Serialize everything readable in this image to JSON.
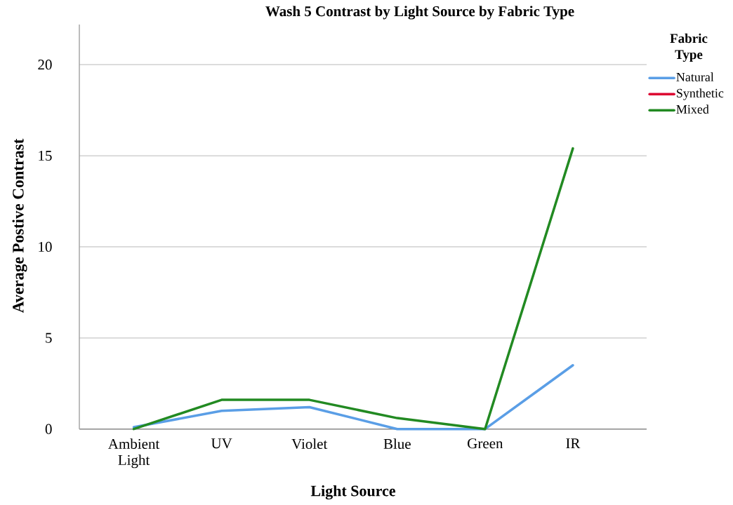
{
  "chart_data": {
    "type": "line",
    "title": "Wash 5 Contrast by Light Source by Fabric Type",
    "xlabel": "Light Source",
    "ylabel": "Average Postive Contrast",
    "legend_title": "Fabric Type",
    "categories": [
      "Ambient Light",
      "UV",
      "Violet",
      "Blue",
      "Green",
      "IR"
    ],
    "series": [
      {
        "name": "Natural",
        "color": "#5a9ee6",
        "values": [
          0.1,
          1.0,
          1.2,
          0,
          0,
          3.5
        ]
      },
      {
        "name": "Synthetic",
        "color": "#dc0030",
        "values": [
          null,
          null,
          null,
          null,
          null,
          null
        ]
      },
      {
        "name": "Mixed",
        "color": "#228a22",
        "values": [
          0,
          1.6,
          1.6,
          0.6,
          0,
          15.4
        ]
      }
    ],
    "ylim": [
      0,
      22.2
    ],
    "yticks": [
      0,
      5,
      10,
      15,
      20
    ],
    "grid": "y",
    "legend": "top right",
    "line_style": "solid"
  }
}
